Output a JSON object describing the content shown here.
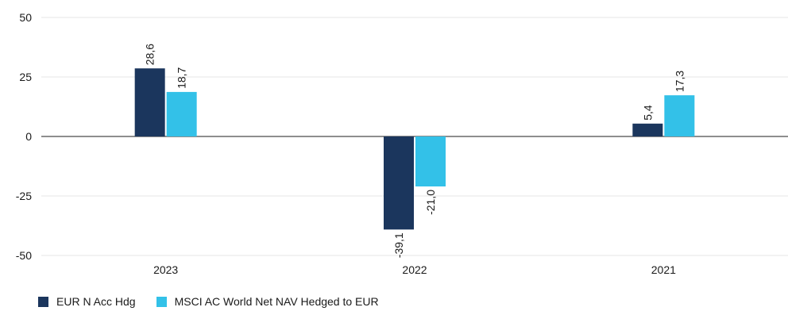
{
  "chart_data": {
    "type": "bar",
    "categories": [
      "2023",
      "2022",
      "2021"
    ],
    "series": [
      {
        "name": "EUR N Acc Hdg",
        "values": [
          28.6,
          -39.1,
          5.4
        ],
        "labels": [
          "28,6",
          "-39,1",
          "5,4"
        ],
        "color": "#1b365d"
      },
      {
        "name": "MSCI AC World Net NAV Hedged to EUR",
        "values": [
          18.7,
          -21.0,
          17.3
        ],
        "labels": [
          "18,7",
          "-21,0",
          "17,3"
        ],
        "color": "#33c1e8"
      }
    ],
    "yticks": [
      50,
      25,
      0,
      -25,
      -50
    ],
    "ylim": [
      -50,
      50
    ],
    "grid": true,
    "legend_position": "bottom-left",
    "title": "",
    "xlabel": "",
    "ylabel": ""
  }
}
